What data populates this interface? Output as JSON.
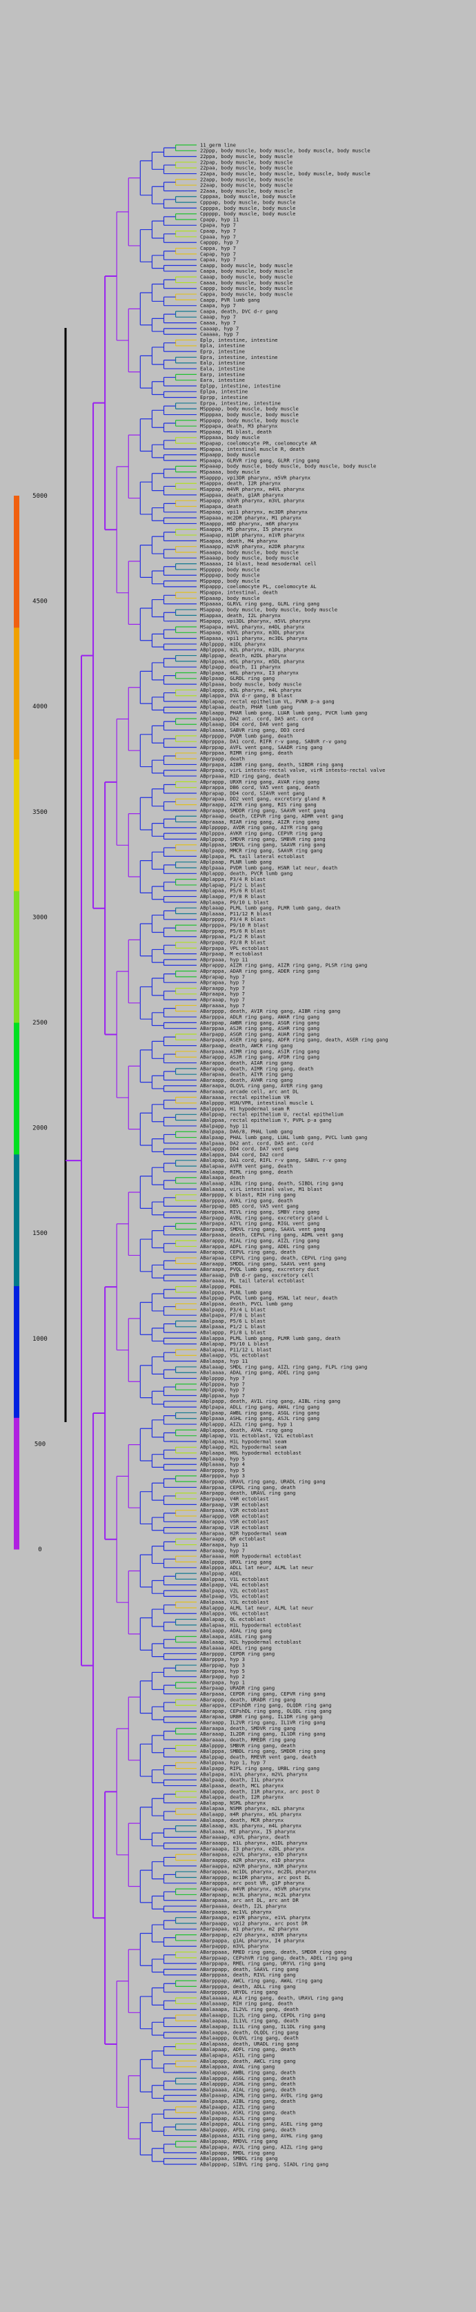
{
  "colors": {
    "background": "#c0c0c0",
    "root_stem": "#000000",
    "scale": [
      "#b020e0",
      "#0020e0",
      "#007a8a",
      "#00e020",
      "#80e020",
      "#e8d000",
      "#f0a000",
      "#f06010"
    ],
    "tree_deep": "#9a20f0",
    "tree_mid": "#2030e0",
    "tree_shallow": [
      "#20c030",
      "#b0e020",
      "#e0c020",
      "#107890"
    ]
  },
  "color_scale": {
    "ticks": [
      "5000",
      "4500",
      "4000",
      "3500",
      "3000",
      "2500",
      "2000",
      "1500",
      "1000",
      "500",
      "0"
    ]
  },
  "leaves": [
    "11_germ line",
    "22ppp, body muscle, body muscle, body muscle, body muscle",
    "22ppa, body muscle, body muscle",
    "22pap, body muscle, body muscle",
    "22paa, body muscle, body muscle",
    "22apa, body muscle, body muscle, body muscle, body muscle",
    "22app, body muscle, body muscle",
    "22aap, body muscle, body muscle",
    "22aaa, body muscle, body muscle",
    "Cpppaa, body muscle, body muscle",
    "Cpppap, body muscle, body muscle",
    "Cppppa, body muscle, body muscle",
    "Cppppp, body muscle, body muscle",
    "Cpapp, hyp 11",
    "Cpapa, hyp 7",
    "Cpaap, hyp 7",
    "Cpaaa, hyp 7",
    "Capppp, hyp 7",
    "Cappa, hyp 7",
    "Capap, hyp 7",
    "Capaa, hyp 7",
    "Caapp, body muscle, body muscle",
    "Caapa, body muscle, body muscle",
    "Caaap, body muscle, body muscle",
    "Caaaa, body muscle, body muscle",
    "Cappp, body muscle, body muscle",
    "Cappa, body muscle, body muscle",
    "Caapp, PVR lumb gang",
    "Caapa, hyp 7",
    "Caapa, death, DVC d-r gang",
    "Caaap, hyp 7",
    "Caaaa, hyp 7",
    "Caaaap, hyp 7",
    "Caaaaa, hyp 7",
    "Eplp, intestine, intestine",
    "Epla, intestine",
    "Eprp, intestine",
    "Epra, intestine, intestine",
    "Ealp, intestine",
    "Eala, intestine",
    "Earp, intestine",
    "Eara, intestine",
    "Eplpp, intestine, intestine",
    "Eplpa, intestine",
    "Eprpp, intestine",
    "Eprpa, intestine, intestine",
    "MSpppap, body muscle, body muscle",
    "MSpppaa, body muscle, body muscle",
    "MSppapp, body muscle, body muscle",
    "MSppapa, death, M3 pharynx",
    "MSppaap, M1 blast, death",
    "MSppaaa, body muscle",
    "MSpapap, coelomocyte PR, coelomocyte AR",
    "MSpapaa, intestinal muscle R, death",
    "MSpaapp, body muscle",
    "MSpaapa, GLRVR ring gang, GLRR ring gang",
    "MSpaaap, body muscle, body muscle, body muscle, body muscle",
    "MSpaaaa, body muscle",
    "MSapppp, vpi3DR pharynx, m5VR pharynx",
    "MSapppa, death, I2R pharynx",
    "MSappap, m4VR pharynx, m4VL pharynx",
    "MSappaa, death, g1AR pharynx",
    "MSapapp, m3VR pharynx, m3VL pharynx",
    "MSapapa, death",
    "MSapaap, vpi1 pharynx, mc3DR pharynx",
    "MSapaaa, mc2DR pharynx, M1 pharynx",
    "MSaappp, m6D pharynx, m6R pharynx",
    "MSaappa, M5 pharynx, I5 pharynx",
    "MSaapap, m1DR pharynx, m1VR pharynx",
    "MSaapaa, death, M4 pharynx",
    "MSaaapp, m2VR pharynx, m2DR pharynx",
    "MSaaapa, body muscle, body muscle",
    "MSaaaap, body muscle, body muscle",
    "MSaaaaa, I4 blast, head mesodermal cell",
    "MSppppp, body muscle",
    "MSpppap, body muscle",
    "MSppapp, body muscle",
    "MSpappp, coelomocyte PL, coelomocyte AL",
    "MSpappa, intestinal, death",
    "MSpaaap, body muscle",
    "MSpaaaa, GLRVL ring gang, GLRL ring gang",
    "MSappap, body muscle, body muscle, body muscle",
    "MSappaa, death, I2L pharynx",
    "MSapapp, vpi3DL pharynx, m5VL pharynx",
    "MSapapa, m4VL pharynx, m4DL pharynx",
    "MSapaap, m3VL pharynx, m3DL pharynx",
    "MSapaaa, vpi1 pharynx, mc3DL pharynx",
    "ABplpppp, m1DL pharynx",
    "ABplpppa, m2L pharynx, m1DL pharynx",
    "ABplppap, death, m2DL pharynx",
    "ABplppaa, m5L pharynx, m5DL pharynx",
    "ABplpapp, death, I1 pharynx",
    "ABplpapa, m6L pharynx, I3 pharynx",
    "ABplpaap, GLRDL ring gang",
    "ABplpaaa, body muscle, body muscle",
    "ABplappp, m3L pharynx, m4L pharynx",
    "ABplappa, DVA d-r gang, B blast",
    "ABplapap, rectal epithelium VL, PVNR p-a gang",
    "ABplapaa, death, PHAR lumb gang",
    "ABplaapp, PHAR lumb gang, LUAR lumb gang, PVCR lumb gang",
    "ABplaapa, DA2 ant. cord, DA5 ant. cord",
    "ABplaaap, DD4 cord, DA6 vent gang",
    "ABplaaaa, SABVR ring gang, DD3 cord",
    "ABprpppp, PVQR lumb gang, death",
    "ABprpppa, DA1 cord, RIFR r-v gang, SABVR r-v gang",
    "ABprppap, AVFL vent gang, SAADR ring gang",
    "ABprppaa, RIMR ring gang, death",
    "ABprpapp, death",
    "ABprpapa, AIBR ring gang, death, SIBDR ring gang",
    "ABprpaap, virL intesto-rectal valve, virR intesto-rectal valve",
    "ABprpaaa, RID ring gang, death",
    "ABprappp, URXR ring gang, AVAR ring gang",
    "ABprappa, DB6 cord, VA5 vent gang, death",
    "ABprapap, DD4 cord, SIAVR vent gang",
    "ABprapaa, DD2 vent gang, excretory gland R",
    "ABpraapp, AIYR ring gang, RIS ring gang",
    "ABpraapa, SMDDR ring gang, SAAVR vent gang",
    "ABpraaap, death, CEPVR ring gang, ADMR vent gang",
    "ABpraaaa, RIAR ring gang, AIZR ring gang",
    "ABplppppp, AVDR ring gang, AIYR ring gang",
    "ABplpppa, AVKR ring gang, CEPVR ring gang",
    "ABplppap, SMDVR ring gang, SMBVR ring gang",
    "ABplppaa, SMDVL ring gang, SAAVR ring gang",
    "ABplpapp, MMCR ring gang, SAAVR ring gang",
    "ABplpapa, PL tail lateral ectoblast",
    "ABplpaap, PLNR lumb gang",
    "ABplpaaa, PVDR lumb gang, HSNR lat neur, death",
    "ABplappp, death, PVCR lumb gang",
    "ABplappa, P3/4 R blast",
    "ABplapap, P1/2 L blast",
    "ABplapaa, P5/6 R blast",
    "ABplaapp, P7/8 R blast",
    "ABplaapa, P9/10 L blast",
    "ABplaaap, PLML lumb gang, PLMR lumb gang, death",
    "ABplaaaa, P11/12 R blast",
    "ABprpppp, P3/4 R blast",
    "ABprpppa, P9/10 R blast",
    "ABprppap, P5/6 R blast",
    "ABprppaa, P1/2 R blast",
    "ABprpapp, P2/8 R blast",
    "ABprpapa, VPL ectoblast",
    "ABprpaap, M ectoblast",
    "ABprpaaa, hyp 11",
    "ABprappp, AIZR ring gang, AIZR ring gang, PLSR ring gang",
    "ABprappa, ADAR ring gang, ADER ring gang",
    "ABprapap, hyp 7",
    "ABprapaa, hyp 7",
    "ABpraapp, hyp 7",
    "ABpraapa, hyp 7",
    "ABpraaap, hyp 7",
    "ABpraaaa, hyp 7",
    "ABarpppp, death, AVIR ring gang, AIBR ring gang",
    "ABarpppa, ADLR ring gang, AWAR ring gang",
    "ABarppap, AWBR ring gang, ASGR ring gang",
    "ABarppaa, ASJR ring gang, ASHR ring gang",
    "ABarpapp, ASGR ring gang, AUAR ring gang",
    "ABarpapa, ASER ring gang, ADFR ring gang, death, ASER ring gang",
    "ABarpaap, death, AWCR ring gang",
    "ABarpaaa, AIMR ring gang, ASIR ring gang",
    "ABarappp, ASJR ring gang, AFDR ring gang",
    "ABarappa, death, AIAR ring gang",
    "ABarapap, death, AIMR ring gang, death",
    "ABarapaa, death, AIYR ring gang",
    "ABaraapp, death, AVHR ring gang",
    "ABaraapa, OLQVL ring gang, AVER ring gang",
    "ABaraaap, arcade cell, arc ant DL",
    "ABaraaaa, rectal epithelium VR",
    "ABalpppp, HSN/VPR, intestinal muscle L",
    "ABalpppa, H1 hypodermal seam R",
    "ABalppap, rectal epithelium U, rectal epithelium",
    "ABalppaa, rectal epithelium Y, PVPL p-a gang",
    "ABalpapp, hyp 11",
    "ABalpapa, DA6/8, PHAL lumb gang",
    "ABalpaap, PHAL lumb gang, LUAL lumb gang, PVCL lumb gang",
    "ABalpaaa, DA2 ant. cord, DA5 ant. cord",
    "ABalappp, DD4 cord, DA7 vent gang",
    "ABalappa, DA4 cord, DA2 cord",
    "ABalapap, DA1 cord, RIFL r-v gang, SABVL r-v gang",
    "ABalapaa, AVFR vent gang, death",
    "ABalaapp, RIML ring gang, death",
    "ABalaapa, death",
    "ABalaaap, AIBL ring gang, death, SIBDL ring gang",
    "ABalaaaa, virL intestinal valve, M1 blast",
    "ABarpppp, K blast, RIH ring gang",
    "ABarpppa, AVKL ring gang, death",
    "ABarppap, DB5 cord, VA5 vent gang",
    "ABarppaa, RIVL ring gang, SMBV ring gang",
    "ABarpapp, AVBL ring gang, excretory gland L",
    "ABarpapa, AIYL ring gang, RIGL vent gang",
    "ABarpaap, SMDVL ring gang, SAAVL vent gang",
    "ABarpaaa, death, CEPVL ring gang, ADML vent gang",
    "ABarappp, RIAL ring gang, AIZL ring gang",
    "ABarappa, ADFL ring gang, ADEL ring gang",
    "ABarapap, CEPVL ring gang, death",
    "ABarapaa, CEPVL ring gang, death, CEPVL ring gang",
    "ABaraapp, SMDDL ring gang, SAAVL vent gang",
    "ABaraapa, PVQL lumb gang, excretory duct",
    "ABaraaap, DVB d-r gang, excretory cell",
    "ABaraaaa, PL tail lateral ectoblast",
    "ABalpppp, PDEL",
    "ABalpppa, PLNL lumb gang",
    "ABalppap, PVDL lumb gang, HSNL lat neur, death",
    "ABalppaa, death, PVCL lumb gang",
    "ABalpapp, P3/4 L blast",
    "ABalpapa, P7/8 L blast",
    "ABalpaap, P5/6 L blast",
    "ABalpaaa, P1/2 L blast",
    "ABalappp, P1/8 L blast",
    "ABalappa, PLML lumb gang, PLMR lumb gang, death",
    "ABalapap, P9/10 L blast",
    "ABalapaa, P11/12 L blast",
    "ABalaapp, V5L ectoblast",
    "ABalaapa, hyp 11",
    "ABalaaap, SMDL ring gang, AIZL ring gang, FLPL ring gang",
    "ABalaaaa, ADAL ring gang, ADEL ring gang",
    "ABplpppp, hyp 7",
    "ABplpppa, hyp 7",
    "ABplppap, hyp 7",
    "ABplppaa, hyp 7",
    "ABplpapp, death, AVIL ring gang, AIBL ring gang",
    "ABplpapa, ADLL ring gang, AWAL ring gang",
    "ABplpaap, AWBL ring gang, ASGL ring gang",
    "ABplpaaa, ASHL ring gang, ASJL ring gang",
    "ABplappp, AIZL ring gang, hyp 1",
    "ABplappa, death, AVHL ring gang",
    "ABplapap, V1L ectoblast, V2L ectoblast",
    "ABplapaa, H1L hypodermal seam",
    "ABplaapp, H2L hypodermal seam",
    "ABplaapa, H0L hypodermal ectoblast",
    "ABplaaap, hyp 5",
    "ABplaaaa, hyp 4",
    "ABarpppp, hyp 5",
    "ABarpppa, hyp 3",
    "ABarppap, URAVL ring gang, URADL ring gang",
    "ABarppaa, CEPDL ring gang, death",
    "ABarpapp, death, URAVL ring gang",
    "ABarpapa, V4R ectoblast",
    "ABarpaap, V3R ectoblast",
    "ABarpaaa, V2R ectoblast",
    "ABarappp, V6R ectoblast",
    "ABarappa, V5R ectoblast",
    "ABarapap, V1R ectoblast",
    "ABarapaa, H2R hypodermal seam",
    "ABaraapp, QR ectoblast",
    "ABaraapa, hyp 11",
    "ABaraaap, hyp 7",
    "ABaraaaa, H0R hypodermal ectoblast",
    "ABalpppp, URXL ring gang",
    "ABalpppa, ADLL lat neur, ALML lat neur",
    "ABalppap, ADEL",
    "ABalppaa, V1L ectoblast",
    "ABalpapp, V4L ectoblast",
    "ABalpapa, V2L ectoblast",
    "ABalpaap, V5L ectoblast",
    "ABalpaaa, V3L ectoblast",
    "ABalappp, ALML lat neur, ALML lat neur",
    "ABalappa, V6L ectoblast",
    "ABalapap, QL ectoblast",
    "ABalapaa, H1L hypodermal ectoblast",
    "ABalaapp, ADAL ring gang",
    "ABalaapa, ASEL ring gang",
    "ABalaaap, H2L hypodermal ectoblast",
    "ABalaaaa, ADEL ring gang",
    "ABarpppp, CEPDR ring gang",
    "ABarpppa, hyp 3",
    "ABarppap, hyp 3",
    "ABarppaa, hyp 5",
    "ABarpapp, hyp 2",
    "ABarpapa, hyp 1",
    "ABarpaap, URADR ring gang",
    "ABarpaaa, CEPDR ring gang, CEPVR ring gang",
    "ABarappp, death, URADR ring gang",
    "ABarappa, CEPshDR ring gang, OLQDR ring gang",
    "ABarapap, CEPshDL ring gang, OLQDL ring gang",
    "ABarapaa, URBR ring gang, IL1DR ring gang",
    "ABaraapp, IL2VR ring gang, IL1VR ring gang",
    "ABaraapa, death, SMDVR ring gang",
    "ABaraaap, IL2DR ring gang, IL1DR ring gang",
    "ABaraaaa, death, RMEDR ring gang",
    "ABalpppp, SMBVR ring gang, death",
    "ABalpppa, SMBDL ring gang, SMDDR ring gang",
    "ABalppap, death, RMEVR vent gang, death",
    "ABalppaa, hyp 1, hyp 7",
    "ABalpapp, RIPL ring gang, URBL ring gang",
    "ABalpapa, m1VL pharynx, m2VL pharynx",
    "ABalpaap, death, I1L pharynx",
    "ABalpaaa, death, MCL pharynx",
    "ABalappp, death, I1R pharynx, arc post D",
    "ABalappa, death, I2R pharynx",
    "ABalapap, NSML pharynx",
    "ABalapaa, NSMR pharynx, m2L pharynx",
    "ABalaapp, m4R pharynx, m5L pharynx",
    "ABalaapa, death, MCR pharynx",
    "ABalaaap, m3L pharynx, m4L pharynx",
    "ABalaaaa, MI pharynx, I5 pharynx",
    "ABaraaaap, e3VL pharynx, death",
    "ABaraaapp, m1L pharynx, m1DL pharynx",
    "ABaraaapa, I3 pharynx, e2DL pharynx",
    "ABaraapaa, e2VL pharynx, e3D pharynx",
    "ABaraappp, m2R pharynx, e1D pharynx",
    "ABaraappa, m2VR pharynx, m3R pharynx",
    "ABarappaa, mc1DL pharynx, mc2DL pharynx",
    "ABarapppp, mc1DR pharynx, arc post DL",
    "ABarapppa, arc post VR, g1P pharynx",
    "ABarapapa, m4VR pharynx, m5VR pharynx",
    "ABarapaap, mc3L pharynx, mc2L pharynx",
    "ABarapaaa, arc ant DL, arc ant DR",
    "ABarpaaaa, death, I2L pharynx",
    "ABarpaaap, mc1VL pharynx",
    "ABarpaapa, e1VR pharynx, e1VL pharynx",
    "ABarpaapp, vpi2 pharynx, arc post DR",
    "ABarpapaa, m1 pharynx, m2 pharynx",
    "ABarpapap, e2V pharynx, m3VR pharynx",
    "ABarpappa, g1AL pharynx, I4 pharynx",
    "ABarpappp, m3VL pharynx",
    "ABarppaaa, RMED ring gang, death, SMDDR ring gang",
    "ABarppaap, CEPshVR ring gang, death, ADEL ring gang",
    "ABarppapa, RMEL ring gang, URYVL ring gang",
    "ABarppapp, death, SAAVL ring gang",
    "ABarpppaa, death, RIVL ring gang",
    "ABarpppap, AWCL ring gang, AWAL ring gang",
    "ABarppppa, death, ADLL ring gang",
    "ABarppppp, URYDL ring gang",
    "ABalaaaaa, ALA ring gang, death, URAVL ring gang",
    "ABalaaaap, RIH ring gang, death",
    "ABalaaapa, IL2VL ring gang, death",
    "ABalaaapp, IL2L ring gang, CEPDL ring gang",
    "ABalaapaa, IL1VL ring gang, death",
    "ABalaapap, IL1L ring gang, IL1DL ring gang",
    "ABalaappa, death, OLQDL ring gang",
    "ABalaappp, OLQVL ring gang, death",
    "ABalapaaa, death, URADL ring gang",
    "ABalapaap, ADFL ring gang, death",
    "ABalapapa, ASIL ring gang",
    "ABalapapp, death, AWCL ring gang",
    "ABalappaa, AVAL ring gang",
    "ABalappap, AWBL ring gang, death",
    "ABalapppa, ASGL ring gang, death",
    "ABalapppp, ASHL ring gang, death",
    "ABalpaaaa, AIAL ring gang, death",
    "ABalpaaap, AIML ring gang, AVDL ring gang",
    "ABalpaapa, AIBL ring gang, death",
    "ABalpaapp, AIZL ring gang",
    "ABalpapaa, ASKL ring gang, death",
    "ABalpapap, ASJL ring gang",
    "ABalpappa, ADLL ring gang, ASEL ring gang",
    "ABalpappp, AFDL ring gang, death",
    "ABalppaaa, ASIL ring gang, AVHL ring gang",
    "ABalppaap, RMDVL ring gang",
    "ABalppapa, AVJL ring gang, AIZL ring gang",
    "ABalppapp, RMDL ring gang",
    "ABalpppaa, SMBDL ring gang",
    "ABalpppap, SIBVL ring gang, SIADL ring gang"
  ]
}
